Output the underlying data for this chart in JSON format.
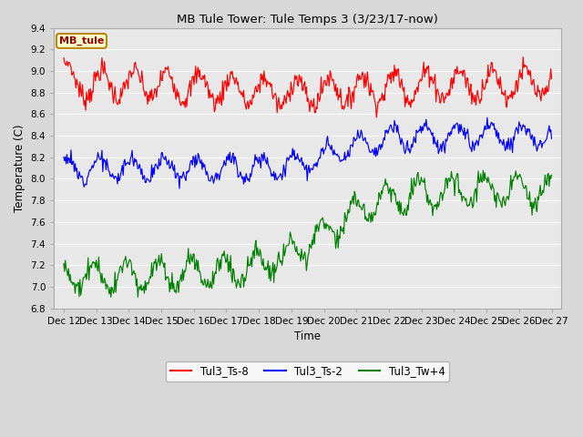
{
  "title": "MB Tule Tower: Tule Temps 3 (3/23/17-now)",
  "xlabel": "Time",
  "ylabel": "Temperature (C)",
  "ylim": [
    6.8,
    9.4
  ],
  "yticks": [
    6.8,
    7.0,
    7.2,
    7.4,
    7.6,
    7.8,
    8.0,
    8.2,
    8.4,
    8.6,
    8.8,
    9.0,
    9.2,
    9.4
  ],
  "xtick_labels": [
    "Dec 12",
    "Dec 13",
    "Dec 14",
    "Dec 15",
    "Dec 16",
    "Dec 17",
    "Dec 18",
    "Dec 19",
    "Dec 20",
    "Dec 21",
    "Dec 22",
    "Dec 23",
    "Dec 24",
    "Dec 25",
    "Dec 26",
    "Dec 27"
  ],
  "legend_labels": [
    "Tul3_Ts-8",
    "Tul3_Ts-2",
    "Tul3_Tw+4"
  ],
  "legend_colors": [
    "red",
    "blue",
    "green"
  ],
  "line_colors": [
    "red",
    "blue",
    "green"
  ],
  "inset_label": "MB_tule",
  "outer_bg_color": "#d8d8d8",
  "plot_bg_color": "#e8e8e8",
  "grid_color": "white",
  "n_points": 600
}
